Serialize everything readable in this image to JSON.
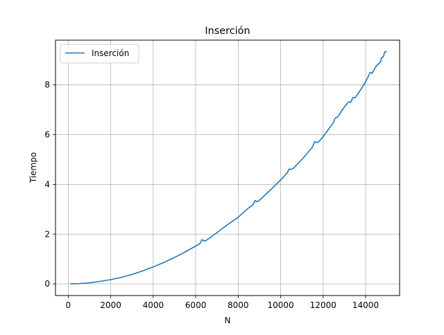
{
  "chart_data": {
    "type": "line",
    "title": "Inserción",
    "xlabel": "N",
    "ylabel": "Tiempo",
    "xlim": [
      -600,
      15600
    ],
    "ylim": [
      -0.47,
      9.8
    ],
    "xticks": [
      0,
      2000,
      4000,
      6000,
      8000,
      10000,
      12000,
      14000
    ],
    "xtick_labels": [
      "0",
      "2000",
      "4000",
      "6000",
      "8000",
      "10000",
      "12000",
      "14000"
    ],
    "yticks": [
      0,
      2,
      4,
      6,
      8
    ],
    "ytick_labels": [
      "0",
      "2",
      "4",
      "6",
      "8"
    ],
    "grid": true,
    "legend_position": "upper left",
    "series": [
      {
        "name": "Inserción",
        "color": "#1f77b4",
        "x": [
          100,
          500,
          1000,
          1500,
          2000,
          2500,
          3000,
          3500,
          4000,
          4500,
          5000,
          5500,
          6000,
          6200,
          6300,
          6400,
          6500,
          7000,
          7500,
          8000,
          8500,
          8700,
          8800,
          8900,
          9000,
          9500,
          10000,
          10300,
          10400,
          10500,
          10600,
          11000,
          11500,
          11600,
          11700,
          11800,
          12000,
          12500,
          12550,
          12700,
          12900,
          13100,
          13200,
          13300,
          13400,
          13500,
          13700,
          14000,
          14200,
          14250,
          14300,
          14500,
          14700,
          14750,
          14800,
          14850,
          14900,
          15000
        ],
        "y": [
          0.0,
          0.01,
          0.04,
          0.1,
          0.17,
          0.26,
          0.38,
          0.52,
          0.68,
          0.86,
          1.06,
          1.28,
          1.52,
          1.62,
          1.78,
          1.72,
          1.75,
          2.06,
          2.38,
          2.68,
          3.06,
          3.18,
          3.35,
          3.3,
          3.36,
          3.76,
          4.18,
          4.45,
          4.62,
          4.6,
          4.65,
          5.0,
          5.5,
          5.72,
          5.68,
          5.72,
          5.92,
          6.5,
          6.65,
          6.72,
          7.0,
          7.22,
          7.32,
          7.3,
          7.5,
          7.48,
          7.72,
          8.12,
          8.48,
          8.5,
          8.46,
          8.76,
          8.92,
          9.1,
          9.1,
          9.18,
          9.33,
          9.34
        ]
      }
    ]
  }
}
